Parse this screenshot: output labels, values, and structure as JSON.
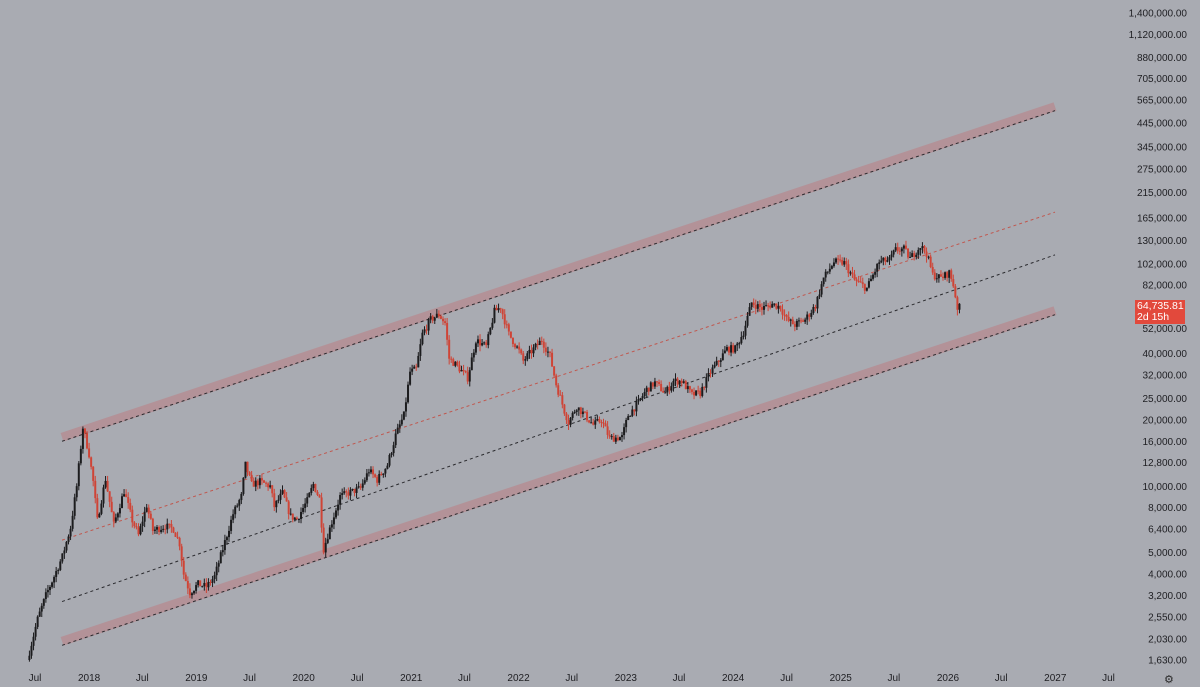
{
  "chart_data": {
    "type": "candlestick",
    "scale": "log",
    "grid": false,
    "ylim": [
      1500,
      1500000
    ],
    "x_axis_labels": [
      "Jul",
      "2018",
      "Jul",
      "2019",
      "Jul",
      "2020",
      "Jul",
      "2021",
      "Jul",
      "2022",
      "Jul",
      "2023",
      "Jul",
      "2024",
      "Jul",
      "2025",
      "Jul",
      "2026",
      "Jul",
      "2027",
      "Jul"
    ],
    "y_axis_labels": [
      "1,400,000.00",
      "1,120,000.00",
      "880,000.00",
      "705,000.00",
      "565,000.00",
      "445,000.00",
      "345,000.00",
      "275,000.00",
      "215,000.00",
      "165,000.00",
      "130,000.00",
      "102,000.00",
      "82,000.00",
      "52,000.00",
      "40,000.00",
      "32,000.00",
      "25,000.00",
      "20,000.00",
      "16,000.00",
      "12,800.00",
      "10,000.00",
      "8,000.00",
      "6,400.00",
      "5,000.00",
      "4,000.00",
      "3,200.00",
      "2,550.00",
      "2,030.00",
      "1,630.00"
    ],
    "current_price": "64,735.81",
    "countdown": "2d 15h",
    "channel": {
      "start_date": "2017-10-01",
      "end_date": "2026-12-31",
      "upper_start": 16000,
      "upper_end": 505000,
      "mid_start": 5700,
      "mid_end": 175000,
      "center_start": 3000,
      "center_end": 112000,
      "lower_start": 1900,
      "lower_end": 60000
    },
    "price_path": [
      [
        "2017-06-12",
        1630
      ],
      [
        "2017-07-17",
        2500
      ],
      [
        "2017-08-14",
        3200
      ],
      [
        "2017-09-11",
        3900
      ],
      [
        "2017-10-09",
        4800
      ],
      [
        "2017-11-06",
        6500
      ],
      [
        "2017-11-27",
        10000
      ],
      [
        "2017-12-18",
        18500
      ],
      [
        "2018-01-08",
        14000
      ],
      [
        "2018-01-22",
        10500
      ],
      [
        "2018-02-05",
        7000
      ],
      [
        "2018-03-05",
        10800
      ],
      [
        "2018-04-02",
        6700
      ],
      [
        "2018-05-07",
        9500
      ],
      [
        "2018-06-04",
        7000
      ],
      [
        "2018-06-25",
        6000
      ],
      [
        "2018-07-23",
        8200
      ],
      [
        "2018-08-13",
        6300
      ],
      [
        "2018-09-24",
        6600
      ],
      [
        "2018-10-22",
        6400
      ],
      [
        "2018-11-12",
        5500
      ],
      [
        "2018-11-26",
        4000
      ],
      [
        "2018-12-17",
        3300
      ],
      [
        "2019-01-14",
        3600
      ],
      [
        "2019-02-11",
        3500
      ],
      [
        "2019-03-11",
        3900
      ],
      [
        "2019-04-08",
        5200
      ],
      [
        "2019-05-13",
        7500
      ],
      [
        "2019-06-10",
        9000
      ],
      [
        "2019-06-24",
        12500
      ],
      [
        "2019-07-15",
        10200
      ],
      [
        "2019-08-12",
        10500
      ],
      [
        "2019-09-16",
        10000
      ],
      [
        "2019-09-30",
        8100
      ],
      [
        "2019-10-28",
        9300
      ],
      [
        "2019-11-25",
        7300
      ],
      [
        "2019-12-16",
        7100
      ],
      [
        "2020-01-20",
        8600
      ],
      [
        "2020-02-10",
        10200
      ],
      [
        "2020-03-02",
        8800
      ],
      [
        "2020-03-16",
        5200
      ],
      [
        "2020-04-13",
        6900
      ],
      [
        "2020-05-11",
        9000
      ],
      [
        "2020-06-15",
        9400
      ],
      [
        "2020-07-20",
        9800
      ],
      [
        "2020-08-17",
        11800
      ],
      [
        "2020-09-14",
        10700
      ],
      [
        "2020-10-19",
        12500
      ],
      [
        "2020-11-16",
        17000
      ],
      [
        "2020-12-14",
        21000
      ],
      [
        "2021-01-04",
        33000
      ],
      [
        "2021-01-25",
        34000
      ],
      [
        "2021-02-15",
        49000
      ],
      [
        "2021-03-15",
        57000
      ],
      [
        "2021-04-12",
        60000
      ],
      [
        "2021-05-03",
        55000
      ],
      [
        "2021-05-17",
        38000
      ],
      [
        "2021-06-14",
        35000
      ],
      [
        "2021-07-19",
        31000
      ],
      [
        "2021-08-16",
        46000
      ],
      [
        "2021-09-20",
        43000
      ],
      [
        "2021-10-18",
        62000
      ],
      [
        "2021-11-08",
        65000
      ],
      [
        "2021-12-06",
        49000
      ],
      [
        "2022-01-10",
        41000
      ],
      [
        "2022-01-24",
        37000
      ],
      [
        "2022-02-14",
        40000
      ],
      [
        "2022-03-28",
        46000
      ],
      [
        "2022-04-25",
        39000
      ],
      [
        "2022-05-16",
        29000
      ],
      [
        "2022-06-13",
        22000
      ],
      [
        "2022-06-27",
        19500
      ],
      [
        "2022-07-25",
        23000
      ],
      [
        "2022-08-15",
        21500
      ],
      [
        "2022-09-19",
        19000
      ],
      [
        "2022-10-17",
        20000
      ],
      [
        "2022-11-14",
        16500
      ],
      [
        "2022-12-26",
        16700
      ],
      [
        "2023-01-16",
        21000
      ],
      [
        "2023-02-20",
        24000
      ],
      [
        "2023-03-20",
        27500
      ],
      [
        "2023-04-17",
        29500
      ],
      [
        "2023-05-22",
        26500
      ],
      [
        "2023-06-19",
        30000
      ],
      [
        "2023-07-17",
        30000
      ],
      [
        "2023-08-21",
        26000
      ],
      [
        "2023-09-18",
        26500
      ],
      [
        "2023-10-23",
        33000
      ],
      [
        "2023-11-20",
        37000
      ],
      [
        "2023-12-18",
        42000
      ],
      [
        "2024-01-15",
        42000
      ],
      [
        "2024-02-12",
        50000
      ],
      [
        "2024-03-11",
        68000
      ],
      [
        "2024-04-15",
        64000
      ],
      [
        "2024-05-20",
        67000
      ],
      [
        "2024-06-17",
        65000
      ],
      [
        "2024-07-08",
        57000
      ],
      [
        "2024-08-05",
        54000
      ],
      [
        "2024-09-09",
        57000
      ],
      [
        "2024-10-14",
        66000
      ],
      [
        "2024-11-11",
        88000
      ],
      [
        "2024-12-16",
        104000
      ],
      [
        "2025-01-20",
        103000
      ],
      [
        "2025-02-24",
        86000
      ],
      [
        "2025-04-07",
        79000
      ],
      [
        "2025-05-19",
        104000
      ],
      [
        "2025-06-23",
        106000
      ],
      [
        "2025-07-14",
        118000
      ],
      [
        "2025-08-11",
        119000
      ],
      [
        "2025-09-01",
        108000
      ],
      [
        "2025-10-06",
        123000
      ],
      [
        "2025-10-27",
        114000
      ],
      [
        "2025-11-17",
        91000
      ],
      [
        "2025-12-15",
        88000
      ],
      [
        "2026-01-12",
        93000
      ],
      [
        "2026-01-26",
        82000
      ],
      [
        "2026-02-09",
        64736
      ]
    ],
    "colors": {
      "background": "#a9abb2",
      "up_candle": "#1c1c1e",
      "down_candle": "#cf4436",
      "channel_band": "#b58d93",
      "mid_line": "#c0574e",
      "price_tag": "#e2493c"
    }
  },
  "icons": {
    "settings": "gear-icon"
  }
}
